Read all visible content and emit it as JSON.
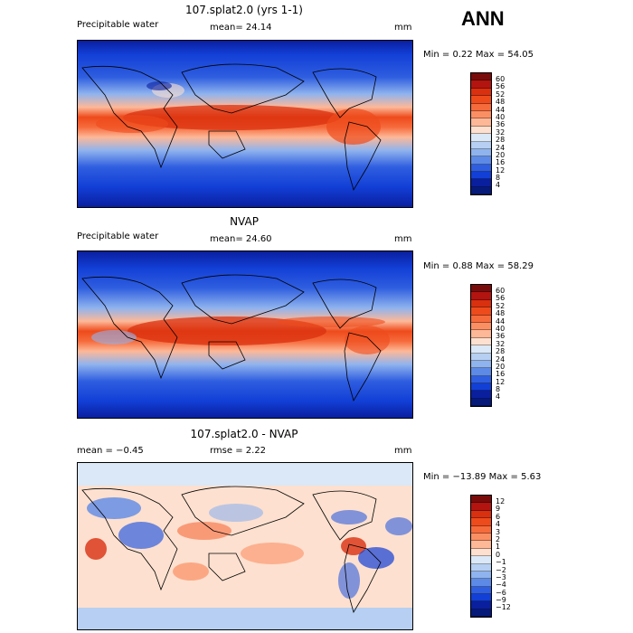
{
  "season": "ANN",
  "panels": [
    {
      "title": "107.splat2.0 (yrs 1-1)",
      "left_label": "Precipitable water",
      "center_label": "mean=  24.14",
      "units": "mm",
      "stats": "Min =   0.22 Max =  54.05",
      "colorbar": {
        "labels": [
          "60",
          "56",
          "52",
          "48",
          "44",
          "40",
          "36",
          "32",
          "28",
          "24",
          "20",
          "16",
          "12",
          "8",
          "4"
        ],
        "colors": [
          "#7a0b0b",
          "#b3140f",
          "#d9300f",
          "#ee4b1c",
          "#f66b3c",
          "#fb8f64",
          "#fdb898",
          "#fde0cf",
          "#dbe8f7",
          "#b6cff2",
          "#8fb3ee",
          "#5d8ae6",
          "#2f5ee0",
          "#123fd6",
          "#0a1f9e",
          "#061a7a"
        ]
      }
    },
    {
      "title": "NVAP",
      "left_label": "Precipitable water",
      "center_label": "mean=  24.60",
      "units": "mm",
      "stats": "Min =   0.88 Max =  58.29",
      "colorbar": {
        "labels": [
          "60",
          "56",
          "52",
          "48",
          "44",
          "40",
          "36",
          "32",
          "28",
          "24",
          "20",
          "16",
          "12",
          "8",
          "4"
        ],
        "colors": [
          "#7a0b0b",
          "#b3140f",
          "#d9300f",
          "#ee4b1c",
          "#f66b3c",
          "#fb8f64",
          "#fdb898",
          "#fde0cf",
          "#dbe8f7",
          "#b6cff2",
          "#8fb3ee",
          "#5d8ae6",
          "#2f5ee0",
          "#123fd6",
          "#0a1f9e",
          "#061a7a"
        ]
      }
    },
    {
      "title": "107.splat2.0 - NVAP",
      "left_label": "mean =   −0.45",
      "center_label": "rmse =   2.22",
      "units": "mm",
      "stats": "Min = −13.89 Max =   5.63",
      "colorbar": {
        "labels": [
          "12",
          "9",
          "6",
          "4",
          "3",
          "2",
          "1",
          "0",
          "−1",
          "−2",
          "−3",
          "−4",
          "−6",
          "−9",
          "−12"
        ],
        "colors": [
          "#7a0b0b",
          "#b3140f",
          "#d9300f",
          "#ee4b1c",
          "#f66b3c",
          "#fb8f64",
          "#fdb898",
          "#fde0cf",
          "#dbe8f7",
          "#b6cff2",
          "#8fb3ee",
          "#5d8ae6",
          "#2f5ee0",
          "#123fd6",
          "#0a1f9e",
          "#061a7a"
        ]
      }
    }
  ]
}
